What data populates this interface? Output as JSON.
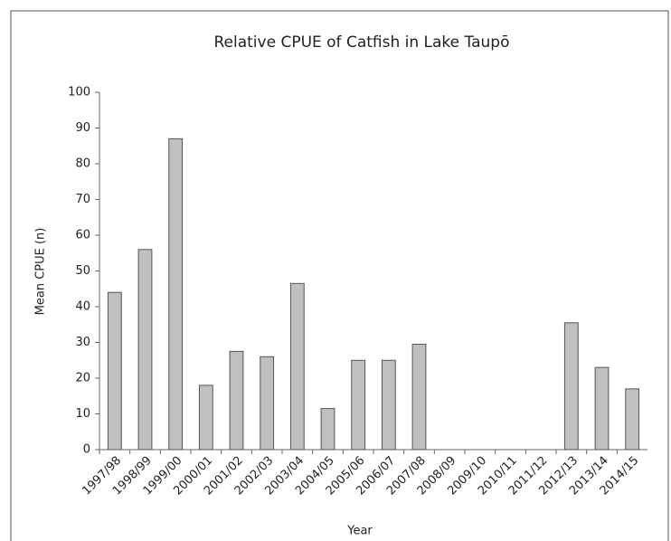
{
  "chart_data": {
    "type": "bar",
    "title": "Relative CPUE of Catfish in Lake Taupō",
    "xlabel": "Year",
    "ylabel": "Mean CPUE (n)",
    "categories": [
      "1997/98",
      "1998/99",
      "1999/00",
      "2000/01",
      "2001/02",
      "2002/03",
      "2003/04",
      "2004/05",
      "2005/06",
      "2006/07",
      "2007/08",
      "2008/09",
      "2009/10",
      "2010/11",
      "2011/12",
      "2012/13",
      "2013/14",
      "2014/15"
    ],
    "values": [
      44,
      56,
      87,
      18,
      27.5,
      26,
      46.5,
      11.5,
      25,
      25,
      29.5,
      null,
      null,
      null,
      null,
      35.5,
      23,
      17
    ],
    "color": "#c0c0c0",
    "ylim": [
      0,
      100
    ],
    "yticks": [
      0,
      10,
      20,
      30,
      40,
      50,
      60,
      70,
      80,
      90,
      100
    ],
    "grid": false
  }
}
